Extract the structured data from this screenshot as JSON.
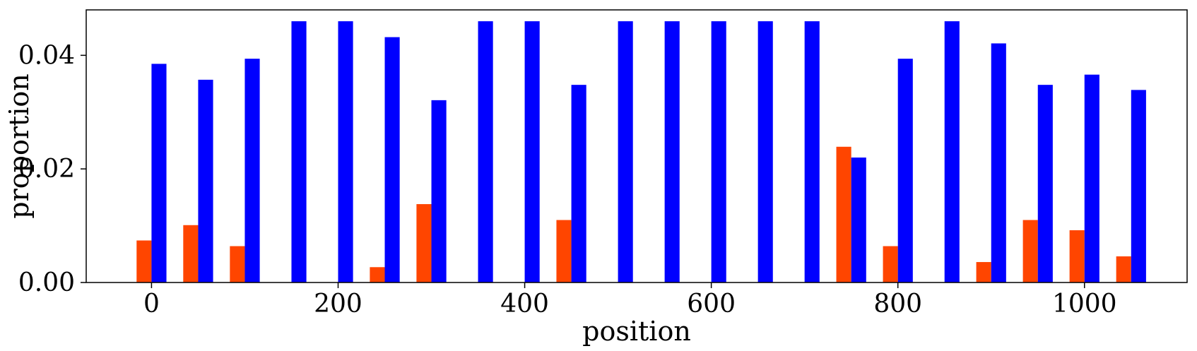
{
  "chart_data": {
    "type": "bar",
    "xlabel": "position",
    "ylabel": "proportion",
    "xlim": [
      -70,
      1110
    ],
    "ylim": [
      0,
      0.048
    ],
    "xticks": [
      0,
      200,
      400,
      600,
      800,
      1000
    ],
    "xtick_labels": [
      "0",
      "200",
      "400",
      "600",
      "800",
      "1000"
    ],
    "yticks": [
      0,
      0.02,
      0.04
    ],
    "ytick_labels": [
      "0.00",
      "0.02",
      "0.04"
    ],
    "grid": false,
    "bin_width": 50,
    "x": [
      0,
      50,
      100,
      150,
      200,
      250,
      300,
      350,
      400,
      450,
      500,
      550,
      600,
      650,
      700,
      750,
      800,
      850,
      900,
      950,
      1000,
      1050
    ],
    "series": [
      {
        "color": "#ff4500",
        "values": [
          0.0074,
          0.0101,
          0.0064,
          0,
          0,
          0.0027,
          0.0138,
          0,
          0,
          0.011,
          0,
          0,
          0,
          0,
          0,
          0.0239,
          0.0064,
          0,
          0.0036,
          0.011,
          0.0092,
          0.0046
        ]
      },
      {
        "color": "#0000ff",
        "values": [
          0.0385,
          0.0357,
          0.0394,
          0.046,
          0.046,
          0.0432,
          0.0321,
          0.046,
          0.046,
          0.0348,
          0.046,
          0.046,
          0.046,
          0.046,
          0.046,
          0.022,
          0.0394,
          0.046,
          0.0421,
          0.0348,
          0.0366,
          0.0339
        ]
      }
    ]
  }
}
